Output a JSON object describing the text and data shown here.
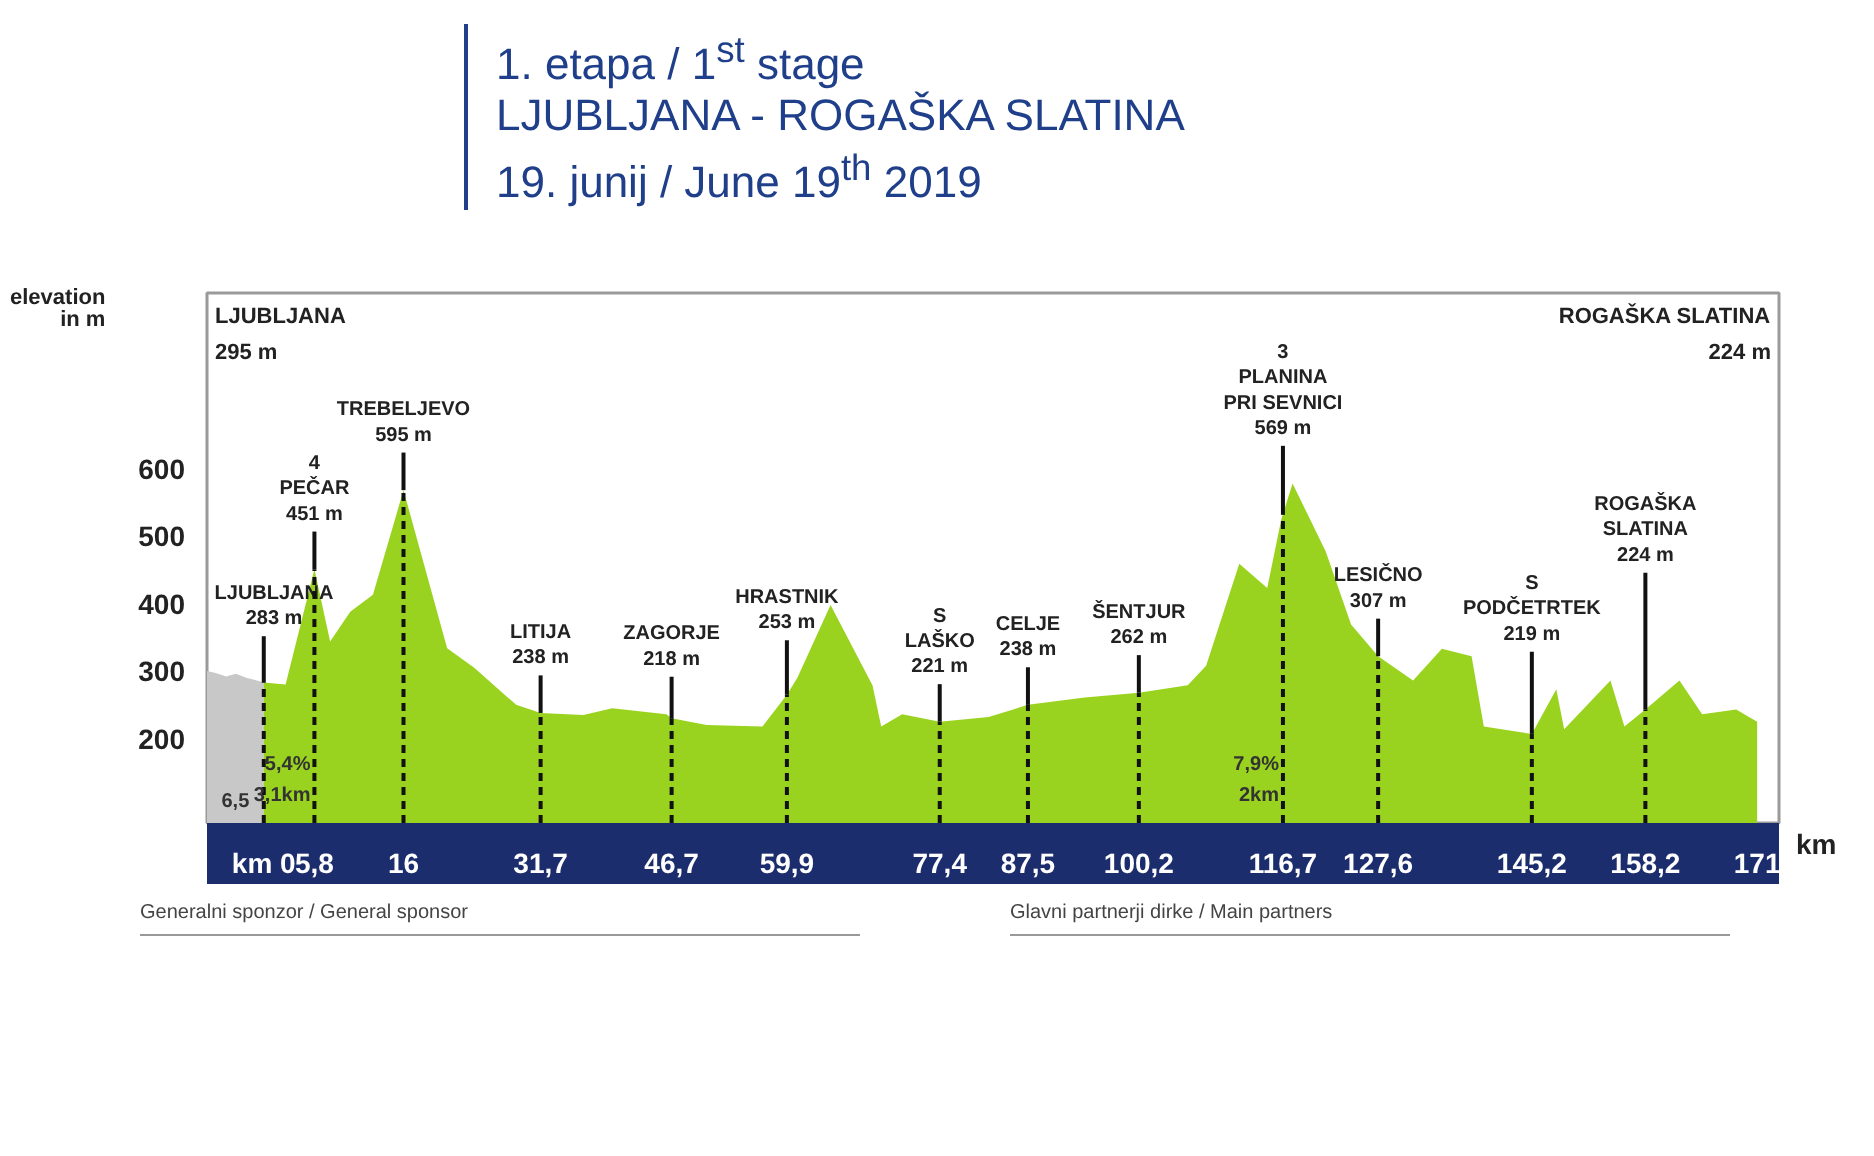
{
  "chart_data": {
    "type": "area",
    "title": "1. etapa / 1$^{st}$ stage",
    "subtitle": "LJUBLJANA - ROGAŠKA SLATINA\n19. junij / June 19$^{th}$ 2019",
    "ylabel": "elevation\nin m",
    "xlabel": "km",
    "series": [
      {
        "color": "#c8c8c8",
        "x": [
          -6.5,
          -5.5,
          -4.3,
          -3.2,
          -2.0,
          -0.8,
          0
        ],
        "values": [
          300,
          297,
          292,
          296,
          290,
          286,
          283
        ]
      },
      {
        "color": "#9ad31f",
        "x": [
          0,
          2.5,
          5.8,
          7.6,
          9.9,
          12.5,
          16,
          21.0,
          24.1,
          28.9,
          31.7,
          36.6,
          39.9,
          46.1,
          46.7,
          50.7,
          57.1,
          59.9,
          61.1,
          64.9,
          69.7,
          70.7,
          73.1,
          77.4,
          83.0,
          87.5,
          94.0,
          100.2,
          105.8,
          107.9,
          111.7,
          114.9,
          116.5,
          117.8,
          121.6,
          124.5,
          127.6,
          131.6,
          134.9,
          138.3,
          139.7,
          145.2,
          148.0,
          148.9,
          154.2,
          155.8,
          158.2,
          162.1,
          164.7,
          168.6,
          171
        ],
        "values": [
          283,
          280,
          451,
          344,
          388,
          413,
          568,
          334,
          305,
          250,
          238,
          235,
          245,
          236,
          230,
          220,
          218,
          265,
          290,
          398,
          279,
          218,
          236,
          225,
          232,
          250,
          261,
          268,
          279,
          308,
          459,
          423,
          524,
          578,
          477,
          369,
          322,
          286,
          333,
          322,
          218,
          207,
          273,
          214,
          286,
          218,
          243,
          286,
          236,
          243,
          225
        ]
      }
    ],
    "xlim": [
      -6.5,
      173.5
    ],
    "ylim": [
      75,
      860
    ],
    "xticks": [
      {
        "value": 0,
        "label": "km 0"
      },
      {
        "value": 5.8,
        "label": "5,8"
      },
      16,
      {
        "value": 31.7,
        "label": "31,7"
      },
      {
        "value": 46.7,
        "label": "46,7"
      },
      {
        "value": 59.9,
        "label": "59,9"
      },
      {
        "value": 77.4,
        "label": "77,4"
      },
      {
        "value": 87.5,
        "label": "87,5"
      },
      {
        "value": 100.2,
        "label": "100,2"
      },
      {
        "value": 116.7,
        "label": "116,7"
      },
      {
        "value": 127.6,
        "label": "127,6"
      },
      {
        "value": 145.2,
        "label": "145,2"
      },
      {
        "value": 158.2,
        "label": "158,2"
      },
      171
    ],
    "yticks": [
      200,
      300,
      400,
      500,
      600
    ],
    "grid": false,
    "ref_lines": [
      {
        "axis": "x",
        "value": 0,
        "label": "LJUBLJANA\n283 m",
        "line_style": "dashed"
      },
      {
        "axis": "x",
        "value": 5.8,
        "label": "4\nPEČAR\n451 m",
        "line_style": "dashed"
      },
      {
        "axis": "x",
        "value": 16,
        "label": "TREBELJEVO\n595 m",
        "line_style": "dashed"
      },
      {
        "axis": "x",
        "value": 31.7,
        "label": "LITIJA\n238 m",
        "line_style": "dashed"
      },
      {
        "axis": "x",
        "value": 46.7,
        "label": "ZAGORJE\n218 m",
        "line_style": "dashed"
      },
      {
        "axis": "x",
        "value": 59.9,
        "label": "HRASTNIK\n253 m",
        "line_style": "dashed"
      },
      {
        "axis": "x",
        "value": 77.4,
        "label": "S\nLAŠKO\n221 m",
        "line_style": "dashed"
      },
      {
        "axis": "x",
        "value": 87.5,
        "label": "CELJE\n238 m",
        "line_style": "dashed"
      },
      {
        "axis": "x",
        "value": 100.2,
        "label": "ŠENTJUR\n262 m",
        "line_style": "dashed"
      },
      {
        "axis": "x",
        "value": 116.7,
        "label": "3\nPLANINA\nPRI SEVNICI\n569 m",
        "line_style": "dashed"
      },
      {
        "axis": "x",
        "value": 127.6,
        "label": "LESIČNO\n307 m",
        "line_style": "dashed"
      },
      {
        "axis": "x",
        "value": 145.2,
        "label": "S\nPODČETRTEK\n219 m",
        "line_style": "dashed"
      },
      {
        "axis": "x",
        "value": 158.2,
        "label": "ROGAŠKA\nSLATINA\n224 m",
        "line_style": "dashed"
      }
    ],
    "annotations": [
      "LJUBLJANA\n295 m",
      "ROGAŠKA SLATINA\n224 m",
      "6,5",
      "3,1km",
      "5,4%",
      "2km",
      "7,9%",
      "Generalni sponzor / General sponsor",
      "Glavni partnerji dirke / Main partners"
    ]
  }
}
